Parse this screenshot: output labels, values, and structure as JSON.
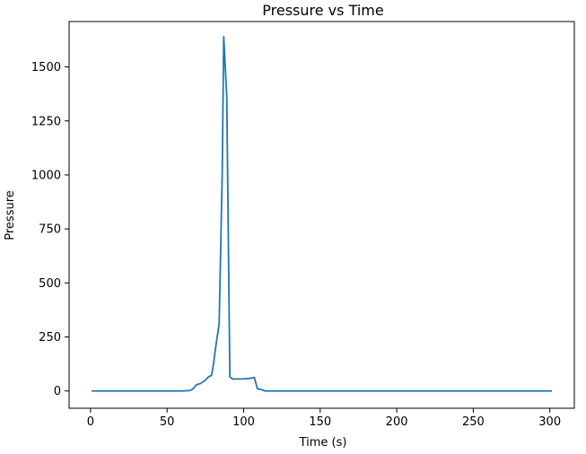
{
  "chart_data": {
    "type": "line",
    "title": "Pressure vs Time",
    "xlabel": "Time (s)",
    "ylabel": "Pressure",
    "xlim": [
      -14,
      316
    ],
    "ylim": [
      -80,
      1710
    ],
    "xticks": [
      0,
      50,
      100,
      150,
      200,
      250,
      300
    ],
    "yticks": [
      0,
      250,
      500,
      750,
      1000,
      1250,
      1500
    ],
    "grid": false,
    "legend": "none",
    "series": [
      {
        "color": "#1f77b4",
        "points": [
          [
            1,
            0
          ],
          [
            20,
            0
          ],
          [
            40,
            0
          ],
          [
            60,
            0
          ],
          [
            65,
            2
          ],
          [
            67,
            10
          ],
          [
            69,
            28
          ],
          [
            72,
            35
          ],
          [
            75,
            50
          ],
          [
            77,
            65
          ],
          [
            79,
            72
          ],
          [
            80,
            110
          ],
          [
            82,
            215
          ],
          [
            84,
            310
          ],
          [
            86,
            1000
          ],
          [
            87,
            1640
          ],
          [
            89,
            1360
          ],
          [
            91,
            65
          ],
          [
            93,
            55
          ],
          [
            100,
            56
          ],
          [
            104,
            58
          ],
          [
            107,
            62
          ],
          [
            109,
            10
          ],
          [
            111,
            8
          ],
          [
            114,
            0
          ],
          [
            150,
            0
          ],
          [
            200,
            0
          ],
          [
            250,
            0
          ],
          [
            301,
            0
          ]
        ]
      }
    ]
  }
}
